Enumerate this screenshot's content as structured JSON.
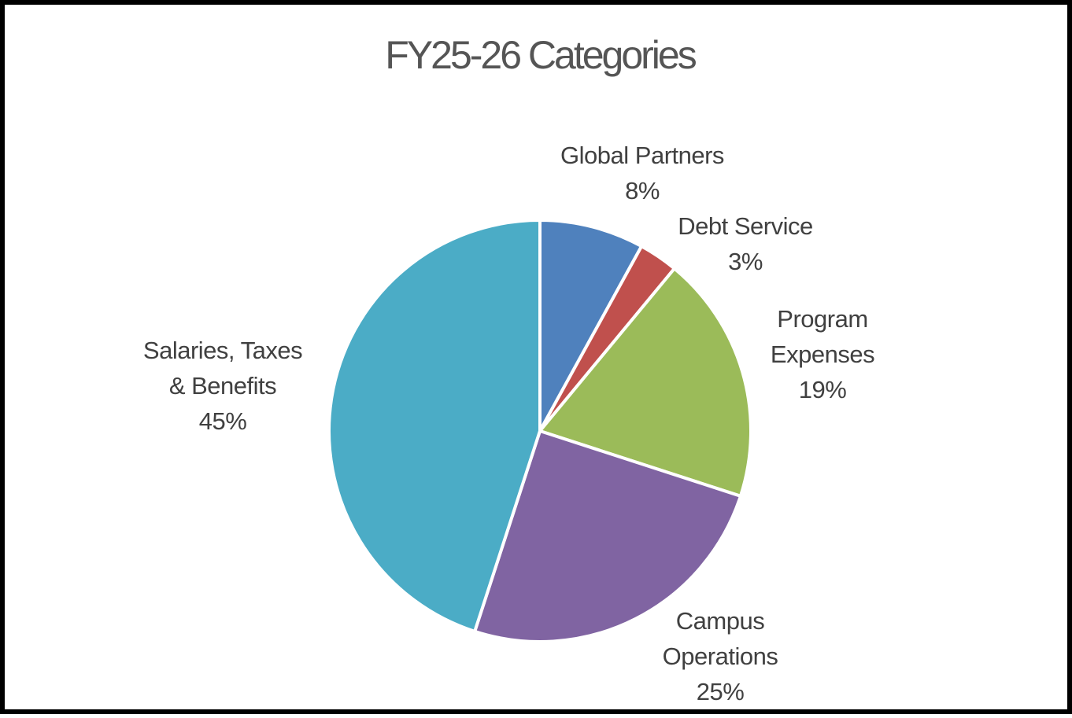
{
  "chart_data": {
    "type": "pie",
    "title": "FY25-26 Categories",
    "slices": [
      {
        "name_lines": [
          "Global Partners"
        ],
        "percent_label": "8%",
        "value": 8,
        "color": "#4F81BD"
      },
      {
        "name_lines": [
          "Debt Service"
        ],
        "percent_label": "3%",
        "value": 3,
        "color": "#C0504D"
      },
      {
        "name_lines": [
          "Program",
          "Expenses"
        ],
        "percent_label": "19%",
        "value": 19,
        "color": "#9BBB59"
      },
      {
        "name_lines": [
          "Campus",
          "Operations"
        ],
        "percent_label": "25%",
        "value": 25,
        "color": "#8064A2"
      },
      {
        "name_lines": [
          "Salaries, Taxes",
          "& Benefits"
        ],
        "percent_label": "45%",
        "value": 45,
        "color": "#4BACC6"
      }
    ],
    "start_angle": "12 o'clock",
    "direction": "clockwise",
    "legend": "none",
    "data_labels": "outside"
  }
}
